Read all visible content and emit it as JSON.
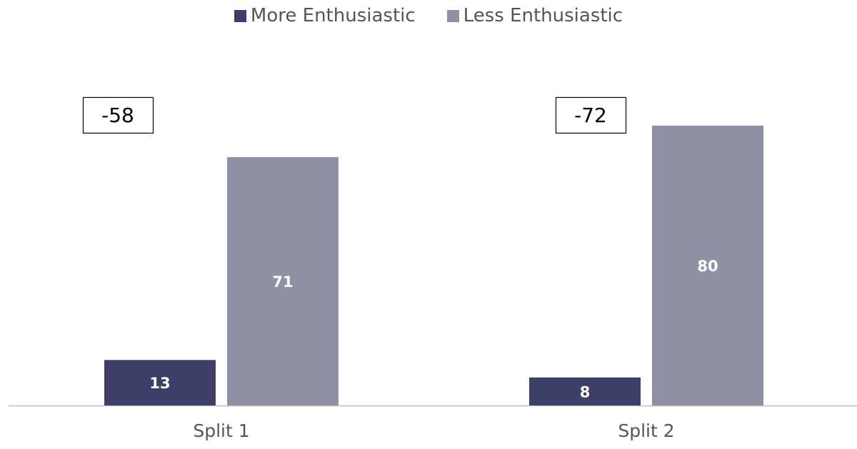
{
  "chart_data": {
    "type": "bar",
    "categories": [
      "Split 1",
      "Split 2"
    ],
    "series": [
      {
        "name": "More Enthusiastic",
        "values": [
          13,
          8
        ],
        "color": "#3e3f68"
      },
      {
        "name": "Less Enthusiastic",
        "values": [
          71,
          80
        ],
        "color": "#9091a5"
      }
    ],
    "annotations": [
      "-58",
      "-72"
    ],
    "ylim": [
      0,
      90
    ],
    "grid": false,
    "legend": "top-center",
    "axis_color": "#bfbfbf"
  }
}
